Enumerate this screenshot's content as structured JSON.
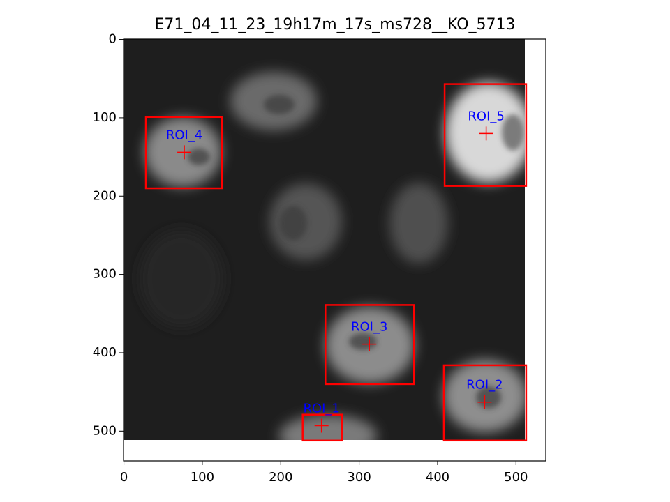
{
  "chart_data": {
    "type": "image",
    "title": "E71_04_11_23_19h17m_17s_ms728__KO_5713",
    "xlim": [
      -0.5,
      538
    ],
    "ylim": [
      538,
      -0.5
    ],
    "xticks": [
      0,
      100,
      200,
      300,
      400,
      500
    ],
    "yticks": [
      0,
      100,
      200,
      300,
      400,
      500
    ],
    "box_color": "#ff0000",
    "label_color": "#0000ff",
    "rois": [
      {
        "label": "ROI_1",
        "x0": 228,
        "x1": 278,
        "y0": 479,
        "y1": 512,
        "cx": 252,
        "cy": 493
      },
      {
        "label": "ROI_2",
        "x0": 408,
        "x1": 513,
        "y0": 416,
        "y1": 512,
        "cx": 460,
        "cy": 463
      },
      {
        "label": "ROI_3",
        "x0": 257,
        "x1": 370,
        "y0": 339,
        "y1": 440,
        "cx": 313,
        "cy": 389
      },
      {
        "label": "ROI_4",
        "x0": 28,
        "x1": 125,
        "y0": 99,
        "y1": 190,
        "cx": 77,
        "cy": 144
      },
      {
        "label": "ROI_5",
        "x0": 409,
        "x1": 513,
        "y0": 57,
        "y1": 187,
        "cx": 462,
        "cy": 120
      }
    ]
  }
}
